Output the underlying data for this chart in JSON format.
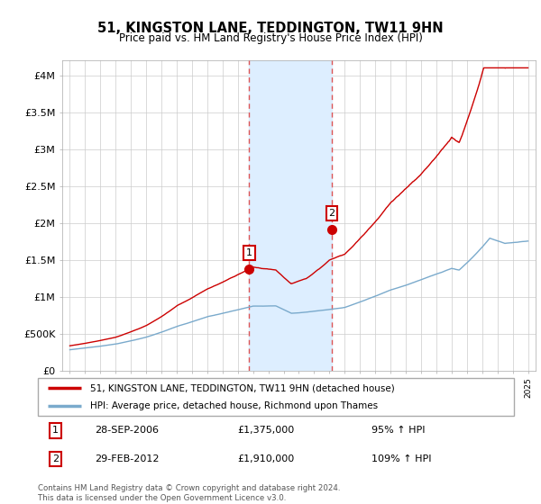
{
  "title": "51, KINGSTON LANE, TEDDINGTON, TW11 9HN",
  "subtitle": "Price paid vs. HM Land Registry's House Price Index (HPI)",
  "ylabel_ticks": [
    "£0",
    "£500K",
    "£1M",
    "£1.5M",
    "£2M",
    "£2.5M",
    "£3M",
    "£3.5M",
    "£4M"
  ],
  "ytick_values": [
    0,
    500000,
    1000000,
    1500000,
    2000000,
    2500000,
    3000000,
    3500000,
    4000000
  ],
  "ylim": [
    0,
    4200000
  ],
  "xlim_start": 1994.5,
  "xlim_end": 2025.5,
  "sale1_x": 2006.75,
  "sale1_y": 1375000,
  "sale1_label": "1",
  "sale1_date": "28-SEP-2006",
  "sale1_price": "£1,375,000",
  "sale1_hpi": "95% ↑ HPI",
  "sale2_x": 2012.16,
  "sale2_y": 1910000,
  "sale2_label": "2",
  "sale2_date": "29-FEB-2012",
  "sale2_price": "£1,910,000",
  "sale2_hpi": "109% ↑ HPI",
  "red_line_color": "#cc0000",
  "blue_line_color": "#7aaacc",
  "shaded_color": "#ddeeff",
  "dashed_line_color": "#dd5555",
  "legend_label_red": "51, KINGSTON LANE, TEDDINGTON, TW11 9HN (detached house)",
  "legend_label_blue": "HPI: Average price, detached house, Richmond upon Thames",
  "footer": "Contains HM Land Registry data © Crown copyright and database right 2024.\nThis data is licensed under the Open Government Licence v3.0.",
  "background_color": "#ffffff",
  "grid_color": "#cccccc"
}
